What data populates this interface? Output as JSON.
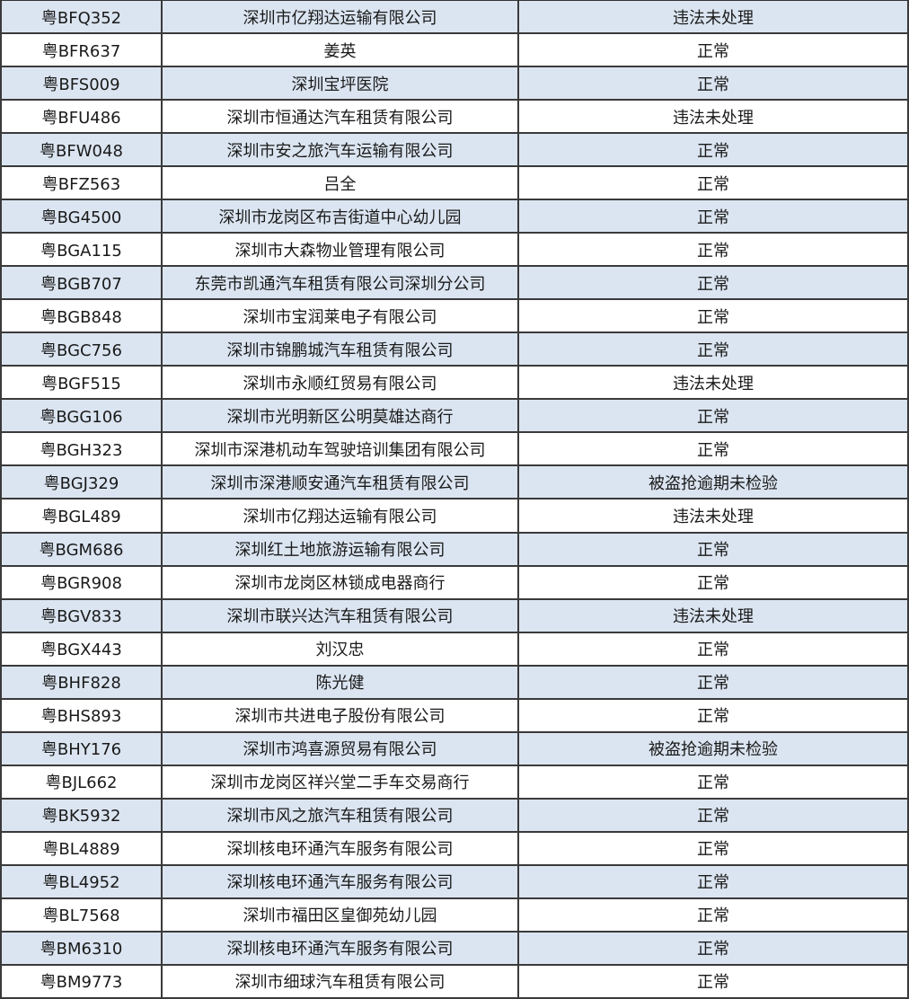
{
  "rows": [
    {
      "plate": "粤BFQ352",
      "owner": "深圳市亿翔达运输有限公司",
      "status": "违法未处理"
    },
    {
      "plate": "粤BFR637",
      "owner": "姜英",
      "status": "正常"
    },
    {
      "plate": "粤BFS009",
      "owner": "深圳宝坪医院",
      "status": "正常"
    },
    {
      "plate": "粤BFU486",
      "owner": "深圳市恒通达汽车租赁有限公司",
      "status": "违法未处理"
    },
    {
      "plate": "粤BFW048",
      "owner": "深圳市安之旅汽车运输有限公司",
      "status": "正常"
    },
    {
      "plate": "粤BFZ563",
      "owner": "吕全",
      "status": "正常"
    },
    {
      "plate": "粤BG4500",
      "owner": "深圳市龙岗区布吉街道中心幼儿园",
      "status": "正常"
    },
    {
      "plate": "粤BGA115",
      "owner": "深圳市大森物业管理有限公司",
      "status": "正常"
    },
    {
      "plate": "粤BGB707",
      "owner": "东莞市凯通汽车租赁有限公司深圳分公司",
      "status": "正常"
    },
    {
      "plate": "粤BGB848",
      "owner": "深圳市宝润莱电子有限公司",
      "status": "正常"
    },
    {
      "plate": "粤BGC756",
      "owner": "深圳市锦鹏城汽车租赁有限公司",
      "status": "正常"
    },
    {
      "plate": "粤BGF515",
      "owner": "深圳市永顺红贸易有限公司",
      "status": "违法未处理"
    },
    {
      "plate": "粤BGG106",
      "owner": "深圳市光明新区公明莫雄达商行",
      "status": "正常"
    },
    {
      "plate": "粤BGH323",
      "owner": "深圳市深港机动车驾驶培训集团有限公司",
      "status": "正常"
    },
    {
      "plate": "粤BGJ329",
      "owner": "深圳市深港顺安通汽车租赁有限公司",
      "status": "被盗抢逾期未检验"
    },
    {
      "plate": "粤BGL489",
      "owner": "深圳市亿翔达运输有限公司",
      "status": "违法未处理"
    },
    {
      "plate": "粤BGM686",
      "owner": "深圳红土地旅游运输有限公司",
      "status": "正常"
    },
    {
      "plate": "粤BGR908",
      "owner": "深圳市龙岗区林锁成电器商行",
      "status": "正常"
    },
    {
      "plate": "粤BGV833",
      "owner": "深圳市联兴达汽车租赁有限公司",
      "status": "违法未处理"
    },
    {
      "plate": "粤BGX443",
      "owner": "刘汉忠",
      "status": "正常"
    },
    {
      "plate": "粤BHF828",
      "owner": "陈光健",
      "status": "正常"
    },
    {
      "plate": "粤BHS893",
      "owner": "深圳市共进电子股份有限公司",
      "status": "正常"
    },
    {
      "plate": "粤BHY176",
      "owner": "深圳市鸿喜源贸易有限公司",
      "status": "被盗抢逾期未检验"
    },
    {
      "plate": "粤BJL662",
      "owner": "深圳市龙岗区祥兴堂二手车交易商行",
      "status": "正常"
    },
    {
      "plate": "粤BK5932",
      "owner": "深圳市风之旅汽车租赁有限公司",
      "status": "正常"
    },
    {
      "plate": "粤BL4889",
      "owner": "深圳核电环通汽车服务有限公司",
      "status": "正常"
    },
    {
      "plate": "粤BL4952",
      "owner": "深圳核电环通汽车服务有限公司",
      "status": "正常"
    },
    {
      "plate": "粤BL7568",
      "owner": "深圳市福田区皇御苑幼儿园",
      "status": "正常"
    },
    {
      "plate": "粤BM6310",
      "owner": "深圳核电环通汽车服务有限公司",
      "status": "正常"
    },
    {
      "plate": "粤BM9773",
      "owner": "深圳市细球汽车租赁有限公司",
      "status": "正常"
    }
  ]
}
